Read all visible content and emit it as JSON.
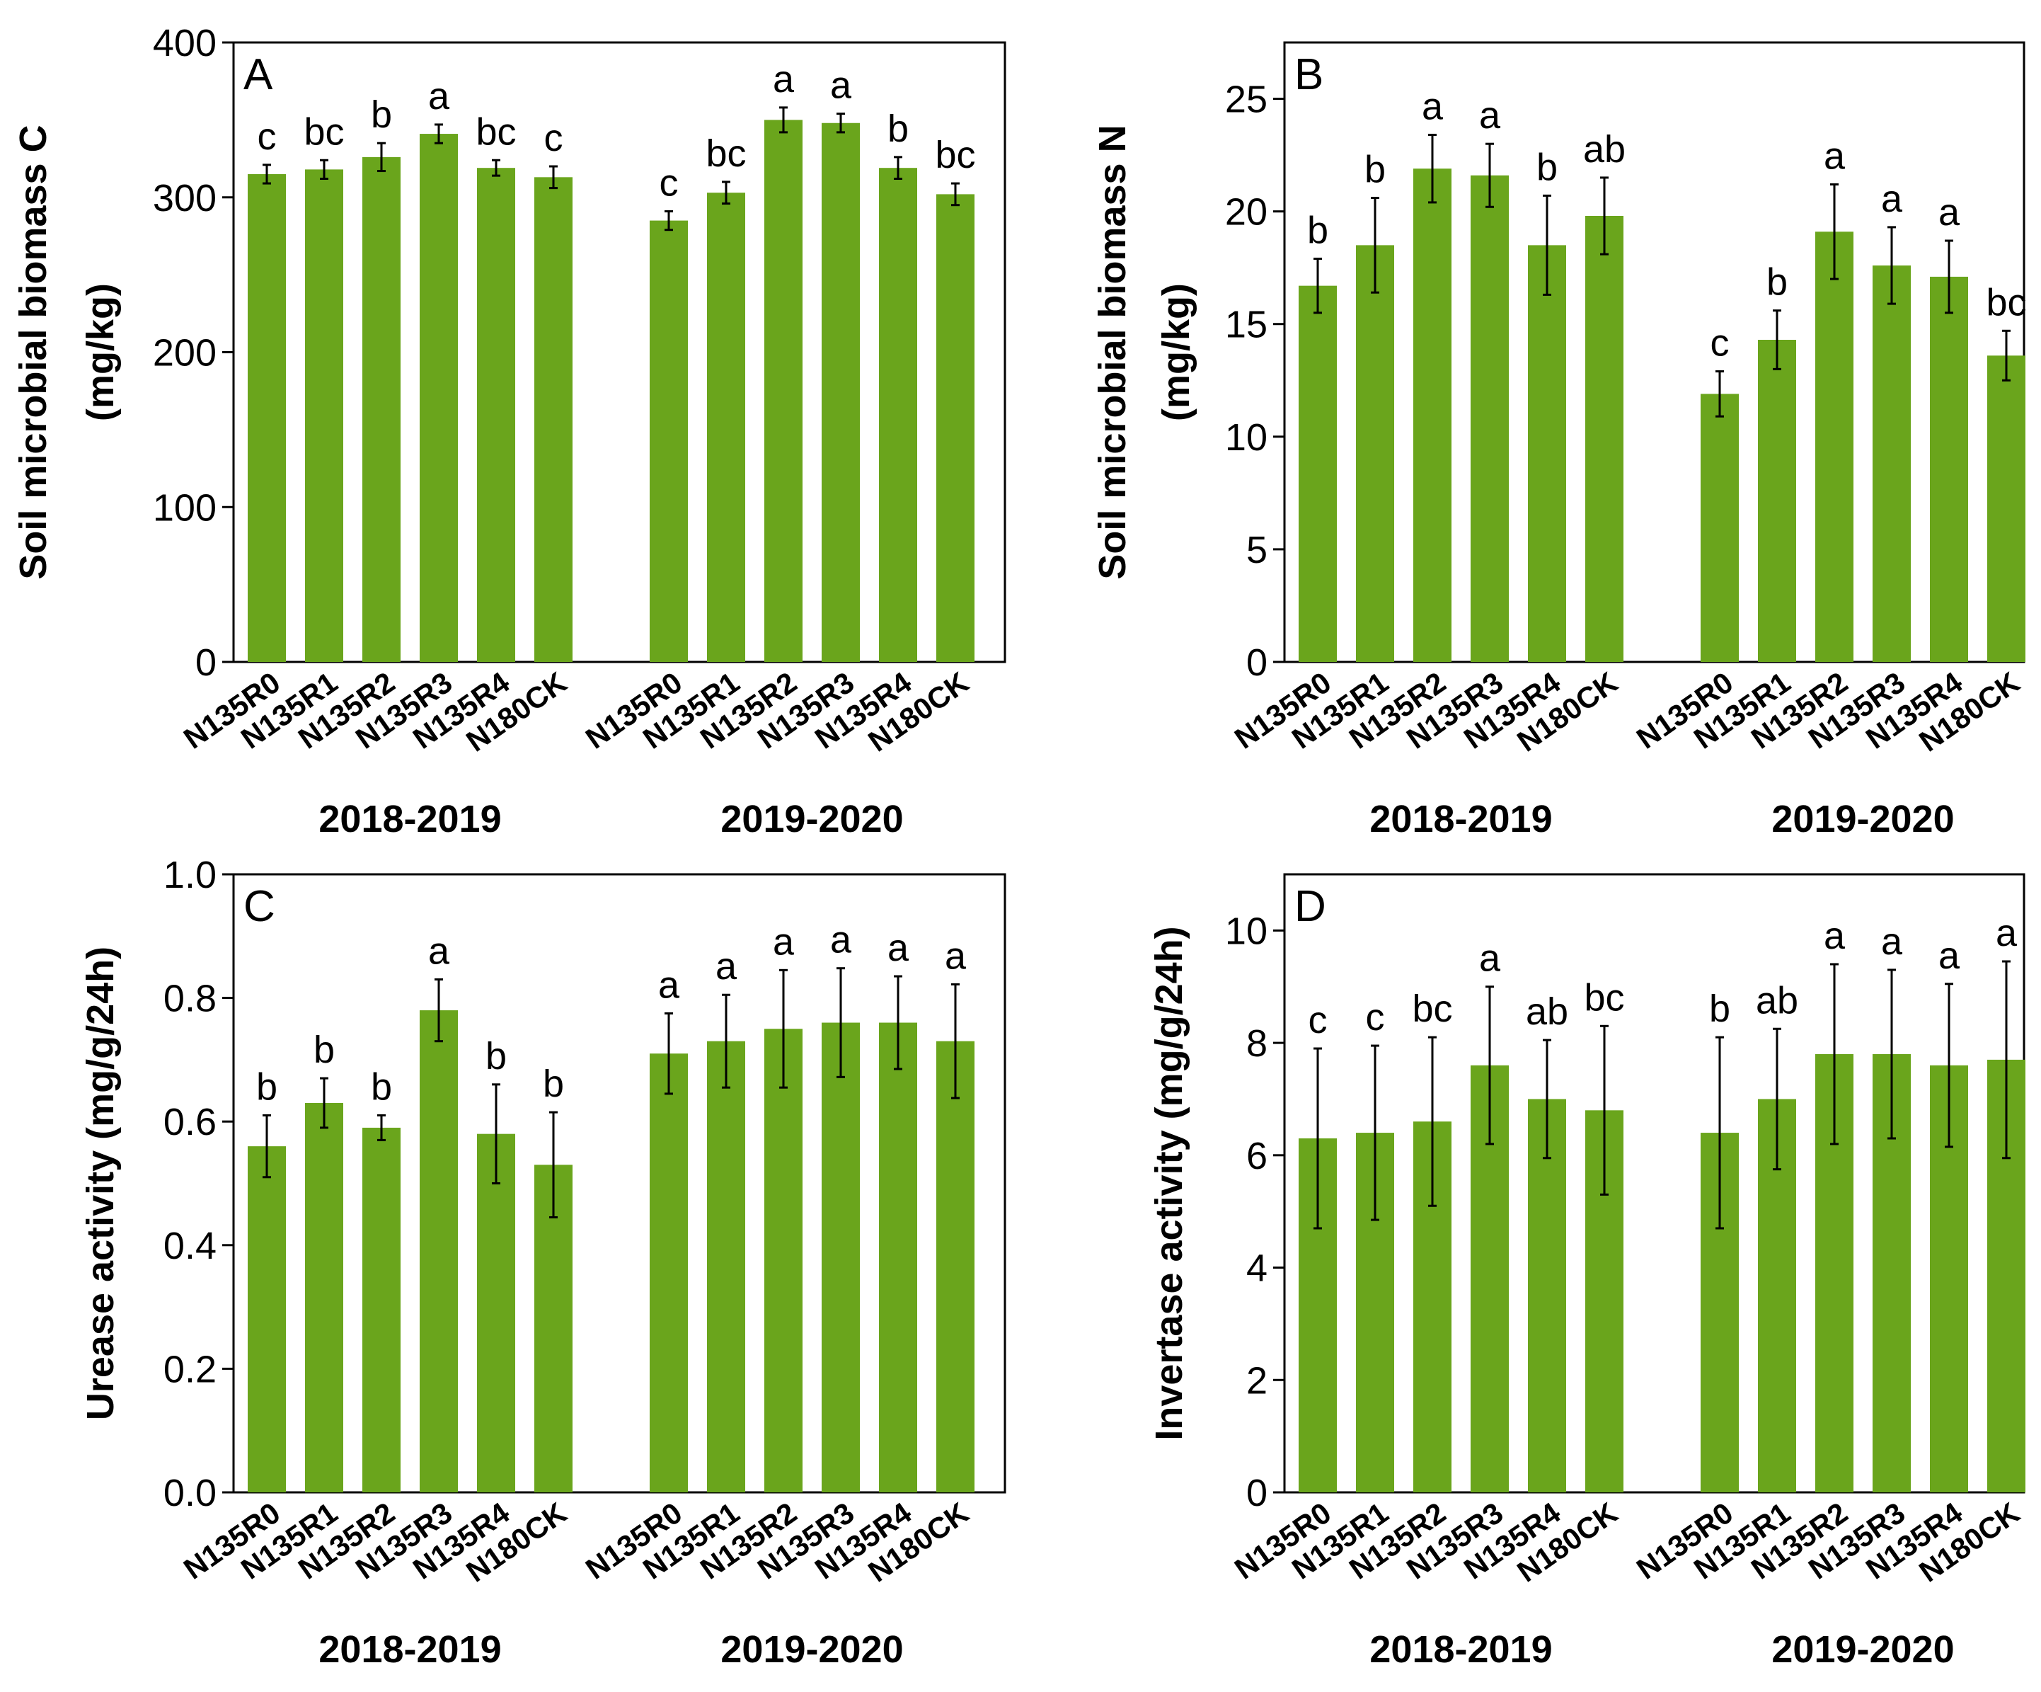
{
  "figure": {
    "bar_color": "#6aa51c",
    "error_color": "#000000",
    "axis_color": "#000000"
  },
  "chart_data": [
    {
      "type": "bar",
      "panel": "A",
      "ylabel_lines": [
        "Soil microbial biomass C",
        "(mg/kg)"
      ],
      "ylim": [
        0,
        400
      ],
      "yticks": [
        0,
        100,
        200,
        300,
        400
      ],
      "groups": [
        {
          "label": "2018-2019",
          "categories": [
            "N135R0",
            "N135R1",
            "N135R2",
            "N135R3",
            "N135R4",
            "N180CK"
          ],
          "values": [
            315,
            318,
            326,
            341,
            319,
            313
          ],
          "errors": [
            6,
            6,
            9,
            6,
            5,
            7
          ],
          "letters": [
            "c",
            "bc",
            "b",
            "a",
            "bc",
            "c"
          ]
        },
        {
          "label": "2019-2020",
          "categories": [
            "N135R0",
            "N135R1",
            "N135R2",
            "N135R3",
            "N135R4",
            "N180CK"
          ],
          "values": [
            285,
            303,
            350,
            348,
            319,
            302
          ],
          "errors": [
            6,
            7,
            8,
            6,
            7,
            7
          ],
          "letters": [
            "c",
            "bc",
            "a",
            "a",
            "b",
            "bc"
          ]
        }
      ]
    },
    {
      "type": "bar",
      "panel": "B",
      "ylabel_lines": [
        "Soil microbial biomass N",
        "(mg/kg)"
      ],
      "ylim": [
        0,
        27.5
      ],
      "yticks": [
        0,
        5,
        10,
        15,
        20,
        25
      ],
      "groups": [
        {
          "label": "2018-2019",
          "categories": [
            "N135R0",
            "N135R1",
            "N135R2",
            "N135R3",
            "N135R4",
            "N180CK"
          ],
          "values": [
            16.7,
            18.5,
            21.9,
            21.6,
            18.5,
            19.8
          ],
          "errors": [
            1.2,
            2.1,
            1.5,
            1.4,
            2.2,
            1.7
          ],
          "letters": [
            "b",
            "b",
            "a",
            "a",
            "b",
            "ab"
          ]
        },
        {
          "label": "2019-2020",
          "categories": [
            "N135R0",
            "N135R1",
            "N135R2",
            "N135R3",
            "N135R4",
            "N180CK"
          ],
          "values": [
            11.9,
            14.3,
            19.1,
            17.6,
            17.1,
            13.6
          ],
          "errors": [
            1.0,
            1.3,
            2.1,
            1.7,
            1.6,
            1.1
          ],
          "letters": [
            "c",
            "b",
            "a",
            "a",
            "a",
            "bc"
          ]
        }
      ]
    },
    {
      "type": "bar",
      "panel": "C",
      "ylabel_lines": [
        "Urease activity  (mg/g/24h)"
      ],
      "ylim": [
        0,
        1.0
      ],
      "yticks": [
        0.0,
        0.2,
        0.4,
        0.6,
        0.8,
        1.0
      ],
      "ytick_labels": [
        "0.0",
        "0.2",
        "0.4",
        "0.6",
        "0.8",
        "1.0"
      ],
      "groups": [
        {
          "label": "2018-2019",
          "categories": [
            "N135R0",
            "N135R1",
            "N135R2",
            "N135R3",
            "N135R4",
            "N180CK"
          ],
          "values": [
            0.56,
            0.63,
            0.59,
            0.78,
            0.58,
            0.53
          ],
          "errors": [
            0.05,
            0.04,
            0.02,
            0.05,
            0.08,
            0.085
          ],
          "letters": [
            "b",
            "b",
            "b",
            "a",
            "b",
            "b"
          ]
        },
        {
          "label": "2019-2020",
          "categories": [
            "N135R0",
            "N135R1",
            "N135R2",
            "N135R3",
            "N135R4",
            "N180CK"
          ],
          "values": [
            0.71,
            0.73,
            0.75,
            0.76,
            0.76,
            0.73
          ],
          "errors": [
            0.065,
            0.075,
            0.095,
            0.088,
            0.075,
            0.092
          ],
          "letters": [
            "a",
            "a",
            "a",
            "a",
            "a",
            "a"
          ]
        }
      ]
    },
    {
      "type": "bar",
      "panel": "D",
      "ylabel_lines": [
        "Invertase activity (mg/g/24h)"
      ],
      "ylim": [
        0,
        11
      ],
      "yticks": [
        0,
        2,
        4,
        6,
        8,
        10
      ],
      "groups": [
        {
          "label": "2018-2019",
          "categories": [
            "N135R0",
            "N135R1",
            "N135R2",
            "N135R3",
            "N135R4",
            "N180CK"
          ],
          "values": [
            6.3,
            6.4,
            6.6,
            7.6,
            7.0,
            6.8
          ],
          "errors": [
            1.6,
            1.55,
            1.5,
            1.4,
            1.05,
            1.5
          ],
          "letters": [
            "c",
            "c",
            "bc",
            "a",
            "ab",
            "bc"
          ]
        },
        {
          "label": "2019-2020",
          "categories": [
            "N135R0",
            "N135R1",
            "N135R2",
            "N135R3",
            "N135R4",
            "N180CK"
          ],
          "values": [
            6.4,
            7.0,
            7.8,
            7.8,
            7.6,
            7.7
          ],
          "errors": [
            1.7,
            1.25,
            1.6,
            1.5,
            1.45,
            1.75
          ],
          "letters": [
            "b",
            "ab",
            "a",
            "a",
            "a",
            "a"
          ]
        }
      ]
    }
  ]
}
